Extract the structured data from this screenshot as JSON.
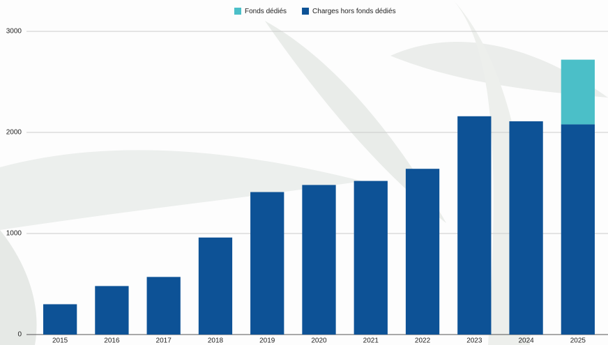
{
  "chart_data": {
    "type": "stacked-bar",
    "categories": [
      "2015",
      "2016",
      "2017",
      "2018",
      "2019",
      "2020",
      "2021",
      "2022",
      "2023",
      "2024",
      "2025"
    ],
    "series": [
      {
        "name": "Charges hors fonds dédiés",
        "color": "#0d5296",
        "values": [
          300,
          480,
          570,
          960,
          1410,
          1480,
          1520,
          1640,
          2160,
          2110,
          2080
        ]
      },
      {
        "name": "Fonds dédiés",
        "color": "#4bbfc8",
        "values": [
          null,
          null,
          null,
          null,
          null,
          null,
          null,
          null,
          null,
          null,
          640
        ]
      }
    ],
    "legend_order": [
      1,
      0
    ],
    "ylim": [
      0,
      3000
    ],
    "yticks": [
      0,
      1000,
      2000,
      3000
    ],
    "grid": true
  }
}
